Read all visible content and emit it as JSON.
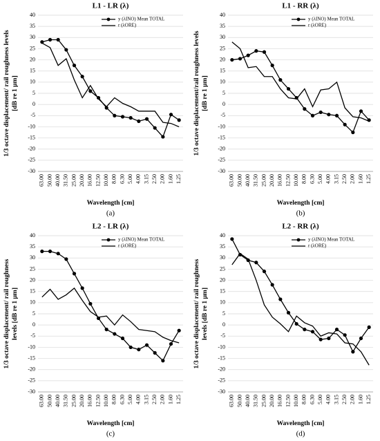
{
  "chart_data": [
    {
      "type": "line",
      "title": "L1 - LR (λ)",
      "caption": "(a)",
      "xlabel": "Wavelength [cm]",
      "ylabel": [
        "1/3  octave displacement/  rail roughness levels",
        "[dB  re 1 µm]"
      ],
      "categories": [
        "63.00",
        "50.00",
        "40.00",
        "31.50",
        "25.00",
        "20.00",
        "16.00",
        "12.50",
        "10.00",
        "8.00",
        "6.30",
        "5.00",
        "4.00",
        "3.15",
        "2.50",
        "2.00",
        "1.60",
        "1.25"
      ],
      "series": [
        {
          "name": "y (λINO) Mean TOTAL",
          "color": "#000000",
          "marker": "circle",
          "values": [
            28,
            29,
            29,
            24.5,
            17.5,
            12.5,
            6,
            3,
            -1.5,
            -5,
            -5.5,
            -6,
            -7.5,
            -6.5,
            -10.5,
            -14.5,
            -4.5,
            -7
          ]
        },
        {
          "name": "r (λORE)",
          "color": "#000000",
          "marker": "none",
          "values": [
            27.5,
            25.5,
            17.5,
            20.5,
            11,
            3,
            8.5,
            2.5,
            -1,
            3,
            0.5,
            -1,
            -3,
            -3,
            -3,
            -8,
            -8.5,
            -10
          ]
        }
      ],
      "ylim": [
        -30,
        40
      ],
      "yticks": [
        -30,
        -25,
        -20,
        -15,
        -10,
        -5,
        0,
        5,
        10,
        15,
        20,
        25,
        30,
        35,
        40
      ],
      "grid": true,
      "legend": "upper right"
    },
    {
      "type": "line",
      "title": "L1 - RR (λ)",
      "caption": "(b)",
      "xlabel": "Wavelength [cm]",
      "ylabel": [
        "1/3  octave displacement/rail roughness levels",
        "[dB  re 1 µm]"
      ],
      "categories": [
        "63.00",
        "50.00",
        "40.00",
        "31.50",
        "25.00",
        "20.00",
        "16.00",
        "12.50",
        "10.00",
        "8.00",
        "6.30",
        "5.00",
        "4.00",
        "3.15",
        "2.50",
        "2.00",
        "1.60",
        "1.25"
      ],
      "series": [
        {
          "name": "y (λINO) Mean TOTAL",
          "color": "#000000",
          "marker": "circle",
          "values": [
            20,
            20.5,
            22,
            24,
            23.5,
            17.5,
            11,
            7,
            3,
            -2,
            -5,
            -3.5,
            -4.5,
            -5,
            -9,
            -12.5,
            -3,
            -7
          ]
        },
        {
          "name": "r (λORE)",
          "color": "#000000",
          "marker": "none",
          "values": [
            28,
            25,
            16.5,
            17,
            12.5,
            12.5,
            7,
            3,
            2.5,
            7,
            -1,
            6.5,
            7,
            10,
            -1.5,
            -5.5,
            -6,
            -7.5
          ]
        }
      ],
      "ylim": [
        -30,
        40
      ],
      "yticks": [
        -30,
        -25,
        -20,
        -15,
        -10,
        -5,
        0,
        5,
        10,
        15,
        20,
        25,
        30,
        35,
        40
      ],
      "grid": true,
      "legend": "upper right"
    },
    {
      "type": "line",
      "title": "L2 - LR (λ)",
      "caption": "(c)",
      "xlabel": "Wavelength [cm]",
      "ylabel": [
        "1/3  octave displacement/  rail roughness",
        "levels [dB  re 1 µm]"
      ],
      "categories": [
        "63.00",
        "50.00",
        "40.00",
        "31.50",
        "25.00",
        "20.00",
        "16.00",
        "12.50",
        "10.00",
        "8.00",
        "6.30",
        "5.00",
        "4.00",
        "3.15",
        "2.50",
        "2.00",
        "1.60",
        "1.25"
      ],
      "series": [
        {
          "name": "y (λINO) Mean TOTAL",
          "color": "#000000",
          "marker": "circle",
          "values": [
            33,
            33,
            32,
            29.5,
            23,
            16.5,
            9.5,
            3,
            -2,
            -4,
            -6,
            -10,
            -11,
            -9,
            -12.5,
            -16,
            -8.5,
            -2.5
          ]
        },
        {
          "name": "r (λORE)",
          "color": "#000000",
          "marker": "none",
          "values": [
            12.5,
            16,
            11.5,
            13.5,
            16.5,
            11,
            6,
            3.5,
            4,
            0,
            4.5,
            1.5,
            -2,
            -2.5,
            -3,
            -5.5,
            -7,
            -8
          ]
        }
      ],
      "ylim": [
        -30,
        40
      ],
      "yticks": [
        -30,
        -25,
        -20,
        -15,
        -10,
        -5,
        0,
        5,
        10,
        15,
        20,
        25,
        30,
        35,
        40
      ],
      "grid": true,
      "legend": "upper right"
    },
    {
      "type": "line",
      "title": "L2 - RR (λ)",
      "caption": "(d)",
      "xlabel": "Wavelength [cm]",
      "ylabel": [
        "1/3  octave displacement/  rail roughness",
        "levels [dB  re 1 µm]"
      ],
      "categories": [
        "63.00",
        "50.00",
        "40.00",
        "31.50",
        "25.00",
        "20.00",
        "16.00",
        "12.50",
        "10.00",
        "8.00",
        "6.30",
        "5.00",
        "4.00",
        "3.15",
        "2.50",
        "2.00",
        "1.60",
        "1.25"
      ],
      "series": [
        {
          "name": "y (λINO) Mean TOTAL",
          "color": "#000000",
          "marker": "circle",
          "values": [
            38.5,
            31.5,
            29,
            28,
            24,
            18,
            11.5,
            5.5,
            0.5,
            -2,
            -3,
            -6.5,
            -6,
            -2,
            -4.5,
            -12,
            -6,
            -1
          ]
        },
        {
          "name": "r (λORE)",
          "color": "#000000",
          "marker": "none",
          "values": [
            27,
            32,
            29.5,
            20,
            9,
            3.5,
            0.5,
            -3,
            4,
            1,
            -0.5,
            -5,
            -3.5,
            -4,
            -8,
            -8.5,
            -12,
            -18
          ]
        }
      ],
      "ylim": [
        -30,
        40
      ],
      "yticks": [
        -30,
        -25,
        -20,
        -15,
        -10,
        -5,
        0,
        5,
        10,
        15,
        20,
        25,
        30,
        35,
        40
      ],
      "grid": true,
      "legend": "upper right"
    }
  ]
}
